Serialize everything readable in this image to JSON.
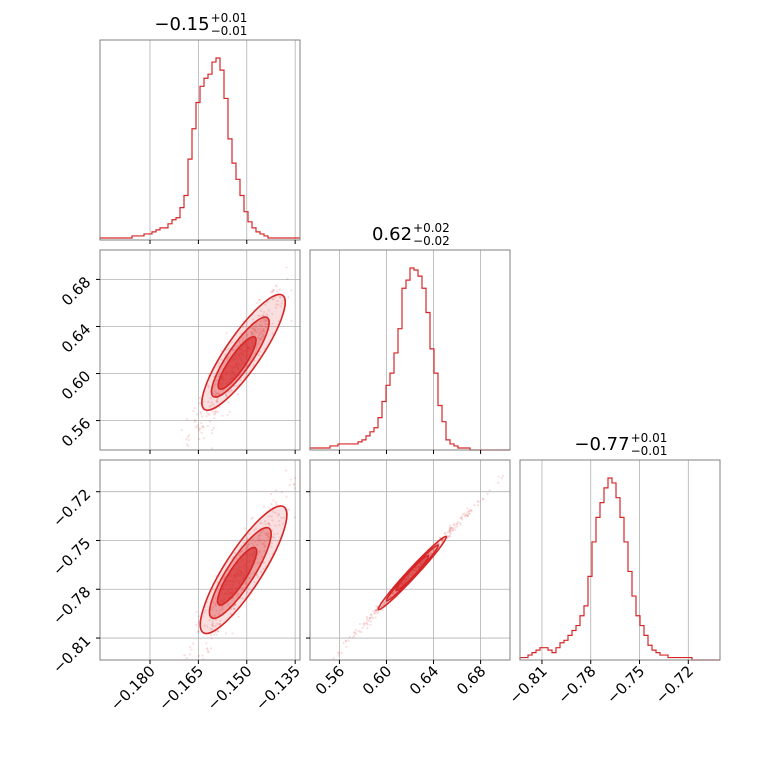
{
  "chart_data": {
    "type": "corner",
    "color": "#d62728",
    "parameters": [
      {
        "title_main": "−0.15",
        "title_plus": "+0.01",
        "title_minus": "−0.01",
        "range": [
          -0.1955,
          -0.1335
        ],
        "ticks": [
          -0.18,
          -0.165,
          -0.15,
          -0.135
        ],
        "tick_labels": [
          "−0.180",
          "−0.165",
          "−0.150",
          "−0.135"
        ],
        "hist": {
          "edges_start": -0.1955,
          "bin_width": 0.00124,
          "counts": [
            1,
            1,
            1,
            1,
            1,
            1,
            1,
            1,
            2,
            2,
            2,
            3,
            3,
            4,
            5,
            6,
            6,
            8,
            10,
            11,
            16,
            22,
            40,
            55,
            68,
            76,
            80,
            82,
            88,
            90,
            84,
            70,
            50,
            38,
            30,
            22,
            14,
            9,
            6,
            4,
            3,
            2,
            1,
            1,
            1,
            1,
            1,
            1,
            1,
            1
          ]
        }
      },
      {
        "title_main": "0.62",
        "title_plus": "+0.02",
        "title_minus": "−0.02",
        "range": [
          0.535,
          0.705
        ],
        "ticks": [
          0.56,
          0.6,
          0.64,
          0.68
        ],
        "tick_labels": [
          "0.56",
          "0.60",
          "0.64",
          "0.68"
        ],
        "hist": {
          "edges_start": 0.535,
          "bin_width": 0.0034,
          "counts": [
            1,
            1,
            1,
            1,
            1,
            2,
            2,
            3,
            3,
            3,
            3,
            3,
            4,
            5,
            7,
            9,
            11,
            16,
            24,
            32,
            38,
            48,
            60,
            80,
            84,
            90,
            89,
            86,
            80,
            68,
            50,
            38,
            22,
            14,
            5,
            3,
            2,
            1,
            1,
            1,
            0,
            0,
            0,
            0,
            0,
            0,
            0,
            0,
            0,
            0
          ]
        }
      },
      {
        "title_main": "−0.77",
        "title_plus": "+0.01",
        "title_minus": "−0.01",
        "range": [
          -0.8235,
          -0.7005
        ],
        "ticks": [
          -0.81,
          -0.78,
          -0.75,
          -0.72
        ],
        "tick_labels": [
          "−0.81",
          "−0.78",
          "−0.75",
          "−0.72"
        ],
        "hist": {
          "edges_start": -0.8235,
          "bin_width": 0.00246,
          "counts": [
            1,
            1,
            2,
            3,
            4,
            5,
            5,
            4,
            3,
            5,
            7,
            8,
            10,
            12,
            14,
            18,
            22,
            34,
            48,
            58,
            64,
            70,
            74,
            72,
            66,
            58,
            48,
            36,
            26,
            18,
            14,
            10,
            6,
            4,
            3,
            2,
            2,
            1,
            1,
            1,
            1,
            1,
            1,
            0,
            0,
            0,
            0,
            0,
            0,
            0
          ]
        }
      }
    ],
    "pairs": [
      {
        "row": 1,
        "col": 0,
        "slope": 4.0,
        "intercept": 1.22,
        "scatter_sx": 0.0075,
        "scatter_sy": 0.012,
        "contours": [
          {
            "cx": -0.153,
            "cy": 0.609,
            "rx": 0.006,
            "ry": 0.021,
            "fill": 0.65
          },
          {
            "cx": -0.152,
            "cy": 0.614,
            "rx": 0.01,
            "ry": 0.03,
            "fill": 0.35
          },
          {
            "cx": -0.151,
            "cy": 0.618,
            "rx": 0.015,
            "ry": 0.042,
            "fill": 0.15
          }
        ]
      },
      {
        "row": 2,
        "col": 0,
        "slope": 3.1,
        "intercept": -0.3,
        "scatter_sx": 0.0075,
        "scatter_sy": 0.01,
        "contours": [
          {
            "cx": -0.153,
            "cy": -0.772,
            "rx": 0.006,
            "ry": 0.017,
            "fill": 0.65
          },
          {
            "cx": -0.152,
            "cy": -0.77,
            "rx": 0.01,
            "ry": 0.026,
            "fill": 0.35
          },
          {
            "cx": -0.151,
            "cy": -0.768,
            "rx": 0.015,
            "ry": 0.035,
            "fill": 0.15
          }
        ]
      },
      {
        "row": 2,
        "col": 1,
        "slope": 0.78,
        "intercept": -1.255,
        "scatter_sx": 0.028,
        "scatter_sy": 0.0015,
        "contours": [
          {
            "cx": 0.622,
            "cy": -0.77,
            "rx": 0.02,
            "ry": 0.002,
            "fill": 0.55
          },
          {
            "cx": 0.622,
            "cy": -0.77,
            "rx": 0.032,
            "ry": 0.003,
            "fill": 0.3
          },
          {
            "cx": 0.622,
            "cy": -0.77,
            "rx": 0.042,
            "ry": 0.004,
            "fill": 0.1
          }
        ]
      }
    ],
    "grid": true
  }
}
